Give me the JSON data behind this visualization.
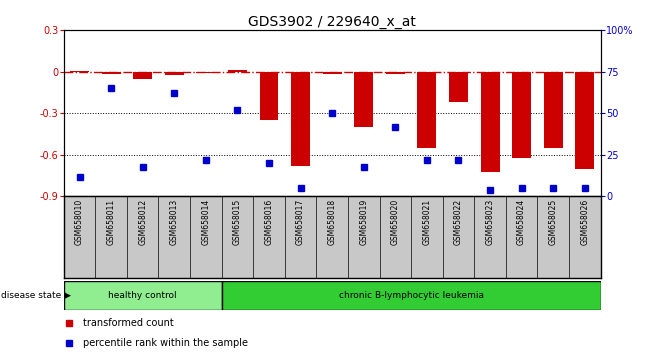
{
  "title": "GDS3902 / 229640_x_at",
  "samples": [
    "GSM658010",
    "GSM658011",
    "GSM658012",
    "GSM658013",
    "GSM658014",
    "GSM658015",
    "GSM658016",
    "GSM658017",
    "GSM658018",
    "GSM658019",
    "GSM658020",
    "GSM658021",
    "GSM658022",
    "GSM658023",
    "GSM658024",
    "GSM658025",
    "GSM658026"
  ],
  "bar_values": [
    0.005,
    -0.02,
    -0.05,
    -0.025,
    -0.01,
    0.01,
    -0.35,
    -0.68,
    -0.02,
    -0.4,
    -0.02,
    -0.55,
    -0.22,
    -0.72,
    -0.62,
    -0.55,
    -0.7
  ],
  "dot_percentiles": [
    12,
    65,
    18,
    62,
    22,
    52,
    20,
    5,
    50,
    18,
    42,
    22,
    22,
    4,
    5,
    5,
    5
  ],
  "ylim_left": [
    -0.9,
    0.3
  ],
  "yticks_left": [
    -0.9,
    -0.6,
    -0.3,
    0.0,
    0.3
  ],
  "ytick_labels_left": [
    "-0.9",
    "-0.6",
    "-0.3",
    "0",
    "0.3"
  ],
  "yticks_right": [
    0,
    25,
    50,
    75,
    100
  ],
  "ytick_labels_right": [
    "0",
    "25",
    "50",
    "75",
    "100%"
  ],
  "bar_color": "#CC0000",
  "dot_color": "#0000CC",
  "hline_color": "#CC0000",
  "dotted_lines": [
    -0.3,
    -0.6
  ],
  "healthy_label": "healthy control",
  "disease_label": "chronic B-lymphocytic leukemia",
  "healthy_color": "#90EE90",
  "disease_color": "#32CD32",
  "disease_state_label": "disease state",
  "legend1": "transformed count",
  "legend2": "percentile rank within the sample",
  "n_healthy": 5,
  "bg_color": "#FFFFFF",
  "label_bg": "#C8C8C8"
}
